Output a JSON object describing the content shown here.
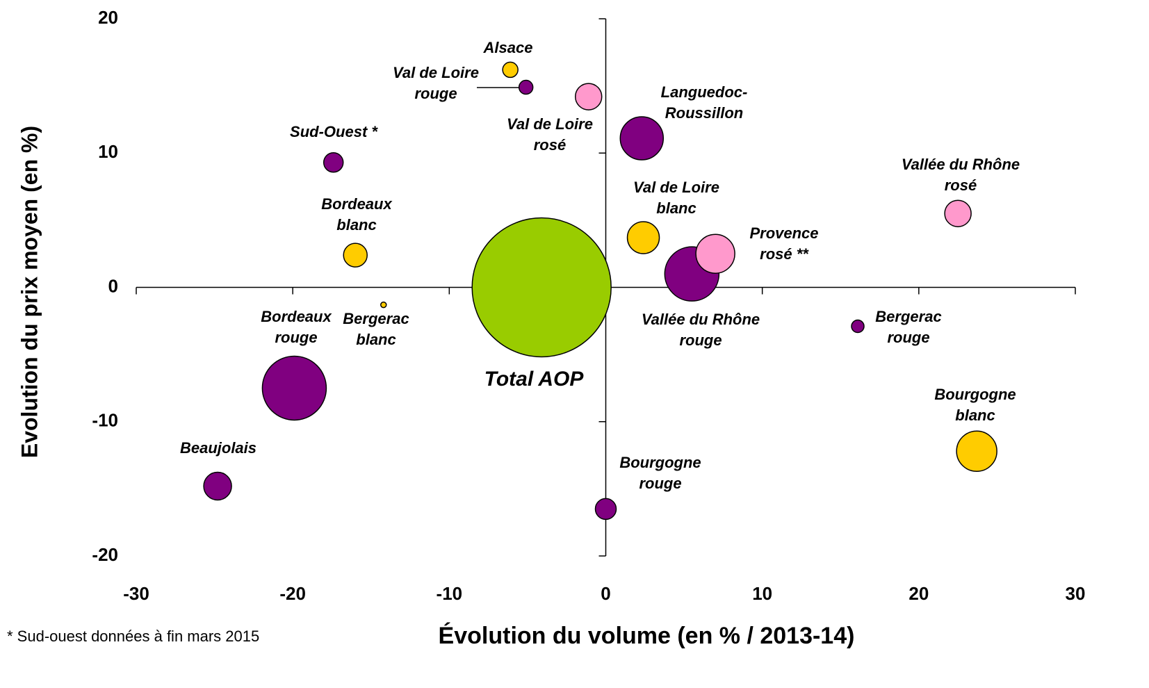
{
  "chart_data": {
    "type": "bubble",
    "x_label": "Évolution du volume (en % / 2013-14)",
    "y_label": "Evolution du prix moyen (en %)",
    "footnote": "* Sud-ouest données à fin mars 2015",
    "xlim": [
      -30,
      30
    ],
    "ylim": [
      -20,
      20
    ],
    "xticks": [
      -30,
      -20,
      -10,
      0,
      10,
      20,
      30
    ],
    "yticks": [
      -20,
      -10,
      0,
      10,
      20
    ],
    "points": [
      {
        "labels": [
          "Total AOP"
        ],
        "x": -4.1,
        "y": 0,
        "size": 100,
        "color": "#99cc00"
      },
      {
        "labels": [
          "Alsace"
        ],
        "x": -6.1,
        "y": 16.2,
        "size": 1.21,
        "color": "#ffcc00"
      },
      {
        "labels": [
          "Val de Loire",
          "rouge"
        ],
        "x": -5.1,
        "y": 14.9,
        "size": 1.0,
        "color": "#800080"
      },
      {
        "labels": [
          "Val de Loire",
          "rosé"
        ],
        "x": -1.1,
        "y": 14.2,
        "size": 3.61,
        "color": "#ff99cc"
      },
      {
        "labels": [
          "Languedoc-",
          "Roussillon"
        ],
        "x": 2.3,
        "y": 11.1,
        "size": 9.61,
        "color": "#800080"
      },
      {
        "labels": [
          "Sud-Ouest *"
        ],
        "x": -17.4,
        "y": 9.3,
        "size": 1.96,
        "color": "#800080"
      },
      {
        "labels": [
          "Vallée du Rhône",
          "rosé"
        ],
        "x": 22.5,
        "y": 5.5,
        "size": 3.61,
        "color": "#ff99cc"
      },
      {
        "labels": [
          "Val de Loire",
          "blanc"
        ],
        "x": 2.4,
        "y": 3.7,
        "size": 5.29,
        "color": "#ffcc00"
      },
      {
        "labels": [
          "Bordeaux",
          "blanc"
        ],
        "x": -16.0,
        "y": 2.4,
        "size": 2.89,
        "color": "#ffcc00"
      },
      {
        "labels": [
          "Vallée du Rhône",
          "rouge"
        ],
        "x": 5.5,
        "y": 1.0,
        "size": 15.21,
        "color": "#800080"
      },
      {
        "labels": [
          "Provence",
          "rosé **"
        ],
        "x": 7.0,
        "y": 2.5,
        "size": 7.84,
        "color": "#ff99cc"
      },
      {
        "labels": [
          "Bergerac",
          "blanc"
        ],
        "x": -14.2,
        "y": -1.3,
        "size": 0.16,
        "color": "#ffcc00"
      },
      {
        "labels": [
          "Bergerac",
          "rouge"
        ],
        "x": 16.1,
        "y": -2.9,
        "size": 0.81,
        "color": "#800080"
      },
      {
        "labels": [
          "Bordeaux",
          "rouge"
        ],
        "x": -19.9,
        "y": -7.5,
        "size": 21.16,
        "color": "#800080"
      },
      {
        "labels": [
          "Bourgogne",
          "blanc"
        ],
        "x": 23.7,
        "y": -12.2,
        "size": 8.41,
        "color": "#ffcc00"
      },
      {
        "labels": [
          "Beaujolais"
        ],
        "x": -24.8,
        "y": -14.8,
        "size": 4.0,
        "color": "#800080"
      },
      {
        "labels": [
          "Bourgogne",
          "rouge"
        ],
        "x": 0,
        "y": -16.5,
        "size": 2.25,
        "color": "#800080"
      }
    ]
  }
}
